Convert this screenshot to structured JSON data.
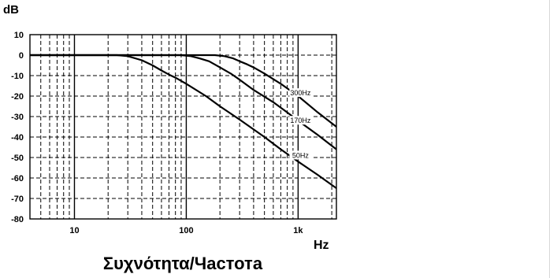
{
  "chart_data": {
    "type": "line",
    "title": "",
    "ylabel": "dB",
    "xlabel": "Hz",
    "caption": "Συχνότητα/Частота",
    "x_scale": "log",
    "xlim": [
      4,
      2200
    ],
    "ylim": [
      -80,
      10
    ],
    "x_ticks": [
      {
        "value": 10,
        "label": "10"
      },
      {
        "value": 100,
        "label": "100"
      },
      {
        "value": 1000,
        "label": "1k"
      }
    ],
    "y_ticks": [
      {
        "value": 10,
        "label": "10"
      },
      {
        "value": 0,
        "label": "0"
      },
      {
        "value": -10,
        "label": "-10"
      },
      {
        "value": -20,
        "label": "-20"
      },
      {
        "value": -30,
        "label": "-30"
      },
      {
        "value": -40,
        "label": "-40"
      },
      {
        "value": -50,
        "label": "-50"
      },
      {
        "value": -60,
        "label": "-60"
      },
      {
        "value": -70,
        "label": "-70"
      },
      {
        "value": -80,
        "label": "-80"
      }
    ],
    "grid": true,
    "series": [
      {
        "name": "50Hz",
        "label_at": {
          "x": 1050,
          "y": -49
        },
        "points": [
          [
            4,
            0
          ],
          [
            24,
            0
          ],
          [
            30,
            -0.5
          ],
          [
            40,
            -2.5
          ],
          [
            50,
            -5
          ],
          [
            60,
            -7.5
          ],
          [
            70,
            -9.5
          ],
          [
            80,
            -11
          ],
          [
            100,
            -14
          ],
          [
            150,
            -20
          ],
          [
            200,
            -25
          ],
          [
            300,
            -31.5
          ],
          [
            500,
            -40
          ],
          [
            700,
            -46
          ],
          [
            1000,
            -52
          ],
          [
            1500,
            -58.5
          ],
          [
            2200,
            -65
          ]
        ]
      },
      {
        "name": "170Hz",
        "label_at": {
          "x": 1050,
          "y": -32
        },
        "points": [
          [
            4,
            0
          ],
          [
            90,
            0
          ],
          [
            110,
            -0.5
          ],
          [
            130,
            -1.5
          ],
          [
            160,
            -3
          ],
          [
            200,
            -6
          ],
          [
            250,
            -9
          ],
          [
            300,
            -12
          ],
          [
            400,
            -17
          ],
          [
            600,
            -23
          ],
          [
            800,
            -28
          ],
          [
            1000,
            -32
          ],
          [
            1500,
            -39
          ],
          [
            2200,
            -46
          ]
        ]
      },
      {
        "name": "300Hz",
        "label_at": {
          "x": 1050,
          "y": -18.5
        },
        "points": [
          [
            4,
            0
          ],
          [
            180,
            0
          ],
          [
            220,
            -0.5
          ],
          [
            260,
            -1.5
          ],
          [
            300,
            -3
          ],
          [
            350,
            -4.5
          ],
          [
            400,
            -6
          ],
          [
            500,
            -9
          ],
          [
            700,
            -14
          ],
          [
            1000,
            -20
          ],
          [
            1500,
            -28
          ],
          [
            2200,
            -35
          ]
        ]
      }
    ]
  }
}
